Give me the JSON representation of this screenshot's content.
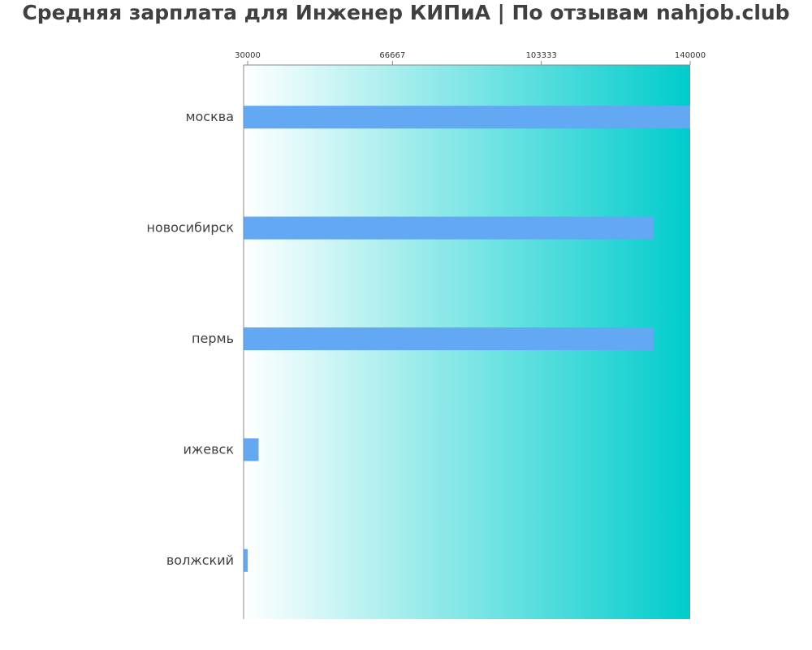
{
  "chart_data": {
    "type": "bar",
    "orientation": "horizontal",
    "title": "Средняя зарплата для Инженер КИПиА | По отзывам nahjob.club",
    "categories": [
      "москва",
      "новосибирск",
      "пермь",
      "ижевск",
      "волжский"
    ],
    "values": [
      140000,
      131000,
      131000,
      33700,
      31000
    ],
    "xlim": [
      30000,
      140000
    ],
    "xticks": [
      30000,
      66667,
      103333,
      140000
    ],
    "xtick_labels": [
      "30000",
      "66667",
      "103333",
      "140000"
    ],
    "xaxis_position": "top",
    "bar_color": "#63a8f2",
    "background_gradient": [
      "#ffffff",
      "#00cccc"
    ],
    "grid": false,
    "legend": "none"
  }
}
